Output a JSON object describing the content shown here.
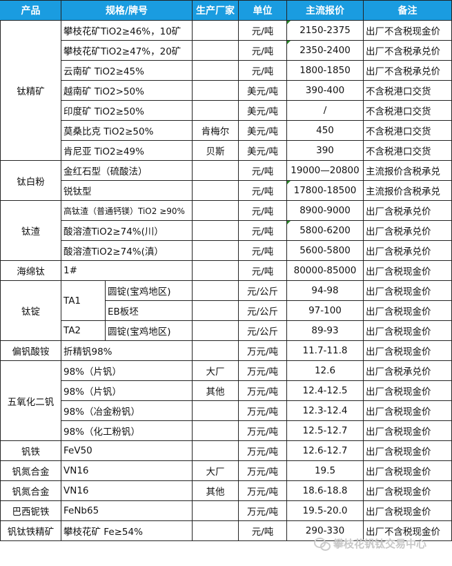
{
  "header": {
    "product": "产品",
    "spec": "规格/牌号",
    "maker": "生产厂家",
    "unit": "单位",
    "price": "主流报价",
    "note": "备注"
  },
  "colors": {
    "header_bg": "#1a9ce0",
    "header_text": "#ffffff",
    "comment_flag": "#2a8a2a"
  },
  "groups": [
    {
      "product": "钛精矿",
      "rows": [
        {
          "spec": "攀枝花矿TiO2≥46%，10矿",
          "maker": "",
          "unit": "元/吨",
          "price": "2150-2375",
          "note": "出厂不含税现金价",
          "flag": true
        },
        {
          "spec": "攀枝花矿TiO2≥47%，20矿",
          "maker": "",
          "unit": "元/吨",
          "price": "2350-2400",
          "note": "出厂不含税承兑价",
          "flag": true
        },
        {
          "spec": "云南矿 TiO2≥45%",
          "maker": "",
          "unit": "元/吨",
          "price": "1800-1850",
          "note": "出厂不含税承兑价"
        },
        {
          "spec": "越南矿 TiO2>50%",
          "maker": "",
          "unit": "美元/吨",
          "price": "390-400",
          "note": "不含税港口交货"
        },
        {
          "spec": "印度矿 TiO2≥50%",
          "maker": "",
          "unit": "美元/吨",
          "price": "/",
          "note": "不含税港口交货"
        },
        {
          "spec": "莫桑比克 TiO2≥50%",
          "maker": "肯梅尔",
          "unit": "美元/吨",
          "price": "450",
          "note": "不含税港口交货"
        },
        {
          "spec": "肯尼亚 TiO2≥49%",
          "maker": "贝斯",
          "unit": "美元/吨",
          "price": "390",
          "note": "不含税港口交货"
        }
      ]
    },
    {
      "product": "钛白粉",
      "rows": [
        {
          "spec": "金红石型（硫酸法）",
          "maker": "",
          "unit": "元/吨",
          "price": "19000—20800",
          "note": "主流报价含税承兑"
        },
        {
          "spec": "锐钛型",
          "maker": "",
          "unit": "元/吨",
          "price": "17800-18500",
          "note": "主流报价含税承兑",
          "flag": true
        }
      ]
    },
    {
      "product": "钛渣",
      "rows": [
        {
          "spec": "高钛渣（普通钙镁）TiO2 ≥90%",
          "maker": "",
          "unit": "元/吨",
          "price": "8900-9000",
          "note": "出厂含税承兑价",
          "small": true
        },
        {
          "spec": "酸溶渣TiO2≥74%(川）",
          "maker": "",
          "unit": "元/吨",
          "price": "5800-6200",
          "note": "出厂含税承兑价",
          "flag": true
        },
        {
          "spec": "酸溶渣TiO2≥74%(滇）",
          "maker": "",
          "unit": "元/吨",
          "price": "5600-5800",
          "note": "出厂含税承兑价"
        }
      ]
    },
    {
      "product": "海绵钛",
      "rows": [
        {
          "spec": "1#",
          "maker": "",
          "unit": "元/吨",
          "price": "80000-85000",
          "note": "出厂含税现金价"
        }
      ]
    },
    {
      "product": "钛锭",
      "rows": [
        {
          "grade": "TA1",
          "spec": "圆锭(宝鸡地区)",
          "maker": "",
          "unit": "元/公斤",
          "price": "94-98",
          "note": "出厂含税现金价"
        },
        {
          "spec": "EB板坯",
          "maker": "",
          "unit": "元/公斤",
          "price": "97-100",
          "note": "出厂含税现金价"
        },
        {
          "grade": "TA2",
          "spec": "圆锭(宝鸡地区)",
          "maker": "",
          "unit": "元/公斤",
          "price": "89-93",
          "note": "出厂含税现金价"
        }
      ]
    },
    {
      "product": "偏钒酸铵",
      "rows": [
        {
          "spec": "折精钒98%",
          "maker": "",
          "unit": "万元/吨",
          "price": "11.7-11.8",
          "note": "出厂含税现金价"
        }
      ]
    },
    {
      "product": "五氧化二钒",
      "rows": [
        {
          "spec": "98%（片钒）",
          "maker": "大厂",
          "unit": "万元/吨",
          "price": "12.6",
          "note": "出厂含税承兑价"
        },
        {
          "spec": "98%（片钒）",
          "maker": "其他",
          "unit": "万元/吨",
          "price": "12.4-12.5",
          "note": "出厂含税现金价"
        },
        {
          "spec": "98%（冶金粉钒）",
          "maker": "",
          "unit": "万元/吨",
          "price": "12.3-12.4",
          "note": "出厂含税现金价"
        },
        {
          "spec": "98%（化工粉钒）",
          "maker": "",
          "unit": "万元/吨",
          "price": "12.5-12.7",
          "note": "出厂含税现金价"
        }
      ]
    },
    {
      "product": "钒铁",
      "rows": [
        {
          "spec": "FeV50",
          "maker": "",
          "unit": "万元/吨",
          "price": "12.6-12.7",
          "note": "出厂含税现金价"
        }
      ]
    },
    {
      "product": "钒氮合金",
      "rows": [
        {
          "spec": "VN16",
          "maker": "大厂",
          "unit": "万元/吨",
          "price": "19.5",
          "note": "出厂含税现金价"
        }
      ]
    },
    {
      "product": "钒氮合金",
      "rows": [
        {
          "spec": "VN16",
          "maker": "其他",
          "unit": "万元/吨",
          "price": "18.6-18.8",
          "note": "出厂含税现金价"
        }
      ]
    },
    {
      "product": "巴西铌铁",
      "rows": [
        {
          "spec": "FeNb65",
          "maker": "",
          "unit": "万元/吨",
          "price": "19.5-20.0",
          "note": "出厂含税现金价"
        }
      ]
    },
    {
      "product": "钒钛铁精矿",
      "rows": [
        {
          "spec": "攀枝花矿 Fe≥54%",
          "maker": "",
          "unit": "元/吨",
          "price": "290-330",
          "note": "出厂不含税现金价"
        }
      ]
    }
  ],
  "watermark": {
    "text": "攀枝花钒钛交易中心",
    "icon": "wechat-icon"
  }
}
